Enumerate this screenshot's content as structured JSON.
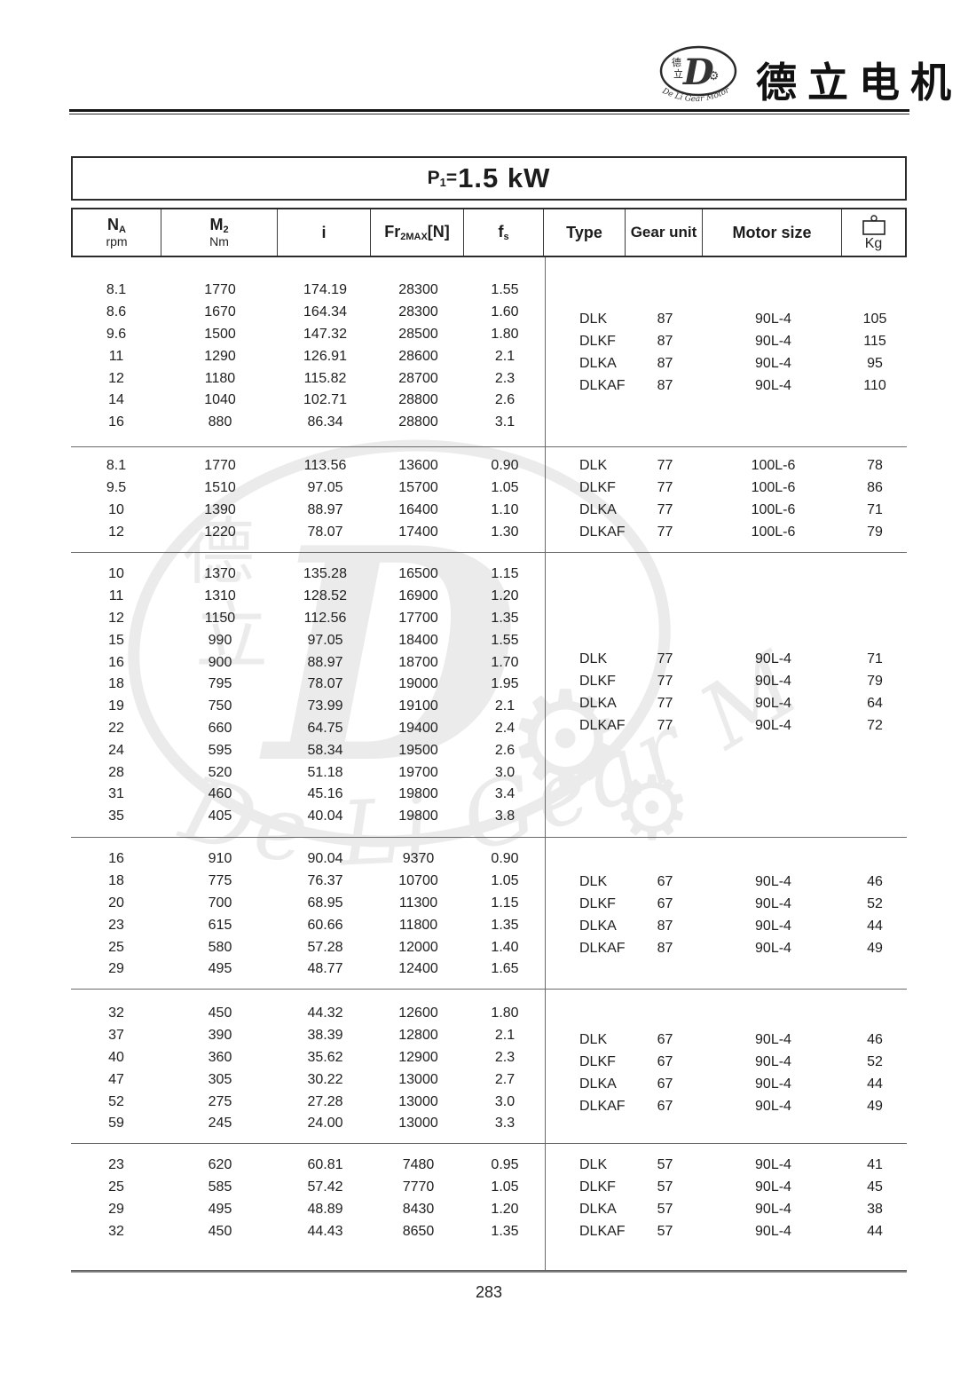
{
  "header": {
    "brand_cn": "德立电机",
    "logo": {
      "letter": "D",
      "cn_top": "德",
      "cn_bottom": "立",
      "arc_text": "De Li Gear Motor"
    }
  },
  "title": {
    "p": "P",
    "p_sub": "1",
    "equals": "=",
    "value": "1.5 kW"
  },
  "columns": {
    "na_main": "N",
    "na_sub": "A",
    "na_unit": "rpm",
    "m2_main": "M",
    "m2_sub": "2",
    "m2_unit": "Nm",
    "i": "i",
    "fr_main": "Fr",
    "fr_sub": "2MAX",
    "fr_suffix": "[N]",
    "fs_main": "f",
    "fs_sub": "s",
    "type": "Type",
    "gear_unit": "Gear unit",
    "motor_size": "Motor size",
    "kg": "Kg"
  },
  "blocks": [
    {
      "rows": [
        [
          "8.1",
          "1770",
          "174.19",
          "28300",
          "1.55"
        ],
        [
          "8.6",
          "1670",
          "164.34",
          "28300",
          "1.60"
        ],
        [
          "9.6",
          "1500",
          "147.32",
          "28500",
          "1.80"
        ],
        [
          "11",
          "1290",
          "126.91",
          "28600",
          "2.1"
        ],
        [
          "12",
          "1180",
          "115.82",
          "28700",
          "2.3"
        ],
        [
          "14",
          "1040",
          "102.71",
          "28800",
          "2.6"
        ],
        [
          "16",
          "880",
          "86.34",
          "28800",
          "3.1"
        ]
      ],
      "types": [
        [
          "DLK",
          "87",
          "90L-4",
          "105"
        ],
        [
          "DLKF",
          "87",
          "90L-4",
          "115"
        ],
        [
          "DLKA",
          "87",
          "90L-4",
          "95"
        ],
        [
          "DLKAF",
          "87",
          "90L-4",
          "110"
        ]
      ]
    },
    {
      "rows": [
        [
          "8.1",
          "1770",
          "113.56",
          "13600",
          "0.90"
        ],
        [
          "9.5",
          "1510",
          "97.05",
          "15700",
          "1.05"
        ],
        [
          "10",
          "1390",
          "88.97",
          "16400",
          "1.10"
        ],
        [
          "12",
          "1220",
          "78.07",
          "17400",
          "1.30"
        ]
      ],
      "types": [
        [
          "DLK",
          "77",
          "100L-6",
          "78"
        ],
        [
          "DLKF",
          "77",
          "100L-6",
          "86"
        ],
        [
          "DLKA",
          "77",
          "100L-6",
          "71"
        ],
        [
          "DLKAF",
          "77",
          "100L-6",
          "79"
        ]
      ]
    },
    {
      "rows": [
        [
          "10",
          "1370",
          "135.28",
          "16500",
          "1.15"
        ],
        [
          "11",
          "1310",
          "128.52",
          "16900",
          "1.20"
        ],
        [
          "12",
          "1150",
          "112.56",
          "17700",
          "1.35"
        ],
        [
          "15",
          "990",
          "97.05",
          "18400",
          "1.55"
        ],
        [
          "16",
          "900",
          "88.97",
          "18700",
          "1.70"
        ],
        [
          "18",
          "795",
          "78.07",
          "19000",
          "1.95"
        ],
        [
          "19",
          "750",
          "73.99",
          "19100",
          "2.1"
        ],
        [
          "22",
          "660",
          "64.75",
          "19400",
          "2.4"
        ],
        [
          "24",
          "595",
          "58.34",
          "19500",
          "2.6"
        ],
        [
          "28",
          "520",
          "51.18",
          "19700",
          "3.0"
        ],
        [
          "31",
          "460",
          "45.16",
          "19800",
          "3.4"
        ],
        [
          "35",
          "405",
          "40.04",
          "19800",
          "3.8"
        ]
      ],
      "types": [
        [
          "DLK",
          "77",
          "90L-4",
          "71"
        ],
        [
          "DLKF",
          "77",
          "90L-4",
          "79"
        ],
        [
          "DLKA",
          "77",
          "90L-4",
          "64"
        ],
        [
          "DLKAF",
          "77",
          "90L-4",
          "72"
        ]
      ]
    },
    {
      "rows": [
        [
          "16",
          "910",
          "90.04",
          "9370",
          "0.90"
        ],
        [
          "18",
          "775",
          "76.37",
          "10700",
          "1.05"
        ],
        [
          "20",
          "700",
          "68.95",
          "11300",
          "1.15"
        ],
        [
          "23",
          "615",
          "60.66",
          "11800",
          "1.35"
        ],
        [
          "25",
          "580",
          "57.28",
          "12000",
          "1.40"
        ],
        [
          "29",
          "495",
          "48.77",
          "12400",
          "1.65"
        ]
      ],
      "types": [
        [
          "DLK",
          "67",
          "90L-4",
          "46"
        ],
        [
          "DLKF",
          "67",
          "90L-4",
          "52"
        ],
        [
          "DLKA",
          "87",
          "90L-4",
          "44"
        ],
        [
          "DLKAF",
          "87",
          "90L-4",
          "49"
        ]
      ]
    },
    {
      "rows": [
        [
          "32",
          "450",
          "44.32",
          "12600",
          "1.80"
        ],
        [
          "37",
          "390",
          "38.39",
          "12800",
          "2.1"
        ],
        [
          "40",
          "360",
          "35.62",
          "12900",
          "2.3"
        ],
        [
          "47",
          "305",
          "30.22",
          "13000",
          "2.7"
        ],
        [
          "52",
          "275",
          "27.28",
          "13000",
          "3.0"
        ],
        [
          "59",
          "245",
          "24.00",
          "13000",
          "3.3"
        ]
      ],
      "types": [
        [
          "DLK",
          "67",
          "90L-4",
          "46"
        ],
        [
          "DLKF",
          "67",
          "90L-4",
          "52"
        ],
        [
          "DLKA",
          "67",
          "90L-4",
          "44"
        ],
        [
          "DLKAF",
          "67",
          "90L-4",
          "49"
        ]
      ]
    },
    {
      "rows": [
        [
          "23",
          "620",
          "60.81",
          "7480",
          "0.95"
        ],
        [
          "25",
          "585",
          "57.42",
          "7770",
          "1.05"
        ],
        [
          "29",
          "495",
          "48.89",
          "8430",
          "1.20"
        ],
        [
          "32",
          "450",
          "44.43",
          "8650",
          "1.35"
        ]
      ],
      "types": [
        [
          "DLK",
          "57",
          "90L-4",
          "41"
        ],
        [
          "DLKF",
          "57",
          "90L-4",
          "45"
        ],
        [
          "DLKA",
          "57",
          "90L-4",
          "38"
        ],
        [
          "DLKAF",
          "57",
          "90L-4",
          "44"
        ]
      ]
    }
  ],
  "watermark": {
    "text": "De Li Gear Motor",
    "letter": "D",
    "cn_top": "德",
    "cn_bottom": "立"
  },
  "footer": {
    "page_number": "283"
  },
  "colors": {
    "ink": "#1c1c1c",
    "line": "#6a6a6a"
  }
}
